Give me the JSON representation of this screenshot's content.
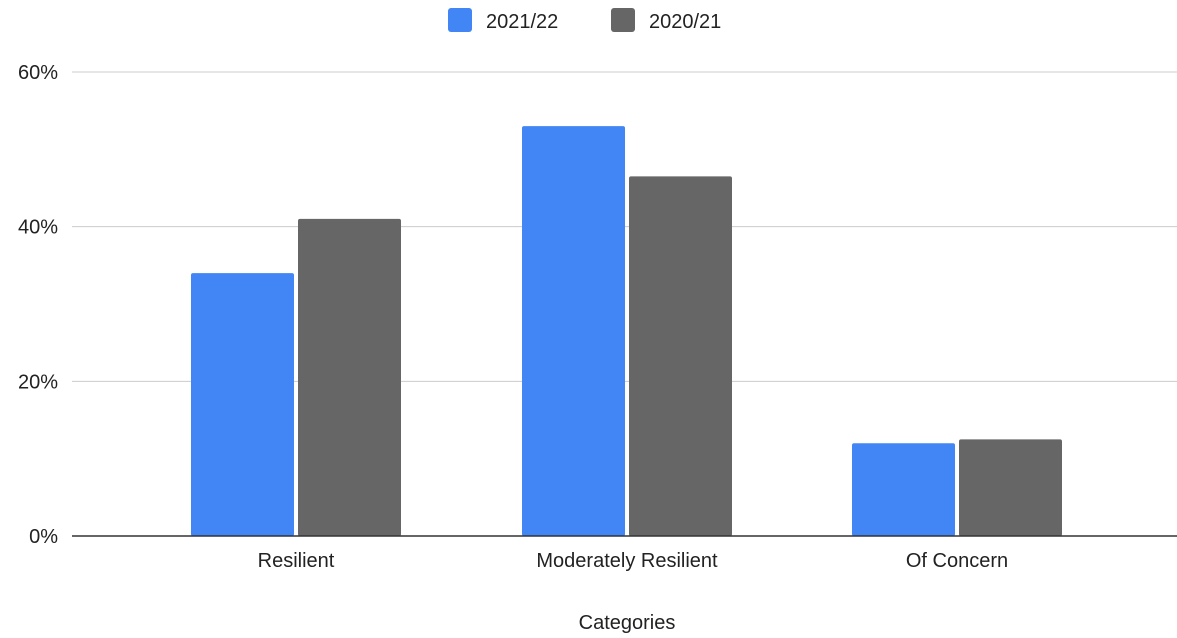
{
  "chart_data": {
    "type": "bar",
    "categories": [
      "Resilient",
      "Moderately Resilient",
      "Of Concern"
    ],
    "series": [
      {
        "name": "2021/22",
        "values": [
          34,
          53,
          12
        ],
        "color": "#4285f4"
      },
      {
        "name": "2020/21",
        "values": [
          41,
          46.5,
          12.5
        ],
        "color": "#666666"
      }
    ],
    "title": "",
    "xlabel": "Categories",
    "ylabel": "",
    "ylim": [
      0,
      60
    ],
    "yticks": [
      {
        "value": 0,
        "label": "0%"
      },
      {
        "value": 20,
        "label": "20%"
      },
      {
        "value": 40,
        "label": "40%"
      },
      {
        "value": 60,
        "label": "60%"
      }
    ],
    "grid": true,
    "legend": "top-center"
  }
}
